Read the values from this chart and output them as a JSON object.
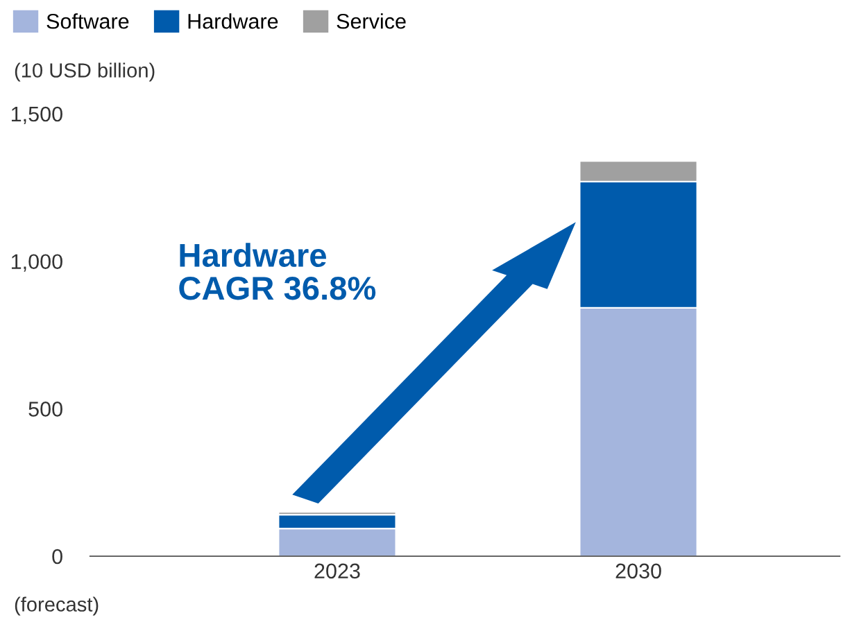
{
  "chart_data": {
    "type": "bar",
    "stacked": true,
    "categories": [
      "2023",
      "2030"
    ],
    "series": [
      {
        "name": "Software",
        "color": "#a4b5dd",
        "values": [
          94,
          842
        ]
      },
      {
        "name": "Hardware",
        "color": "#005bac",
        "values": [
          47,
          428
        ]
      },
      {
        "name": "Service",
        "color": "#a0a0a0",
        "values": [
          9,
          70
        ]
      }
    ],
    "ylabel": "(10 USD billion)",
    "ylim": [
      0,
      1500
    ],
    "yticks": [
      0,
      500,
      {
        "value": 1000,
        "label": "1,000"
      },
      {
        "value": 1500,
        "label": "1,500"
      }
    ],
    "grid": false,
    "legend": "top left",
    "annotations": [
      "Hardware\nCAGR 36.8%",
      "(forecast)"
    ]
  }
}
